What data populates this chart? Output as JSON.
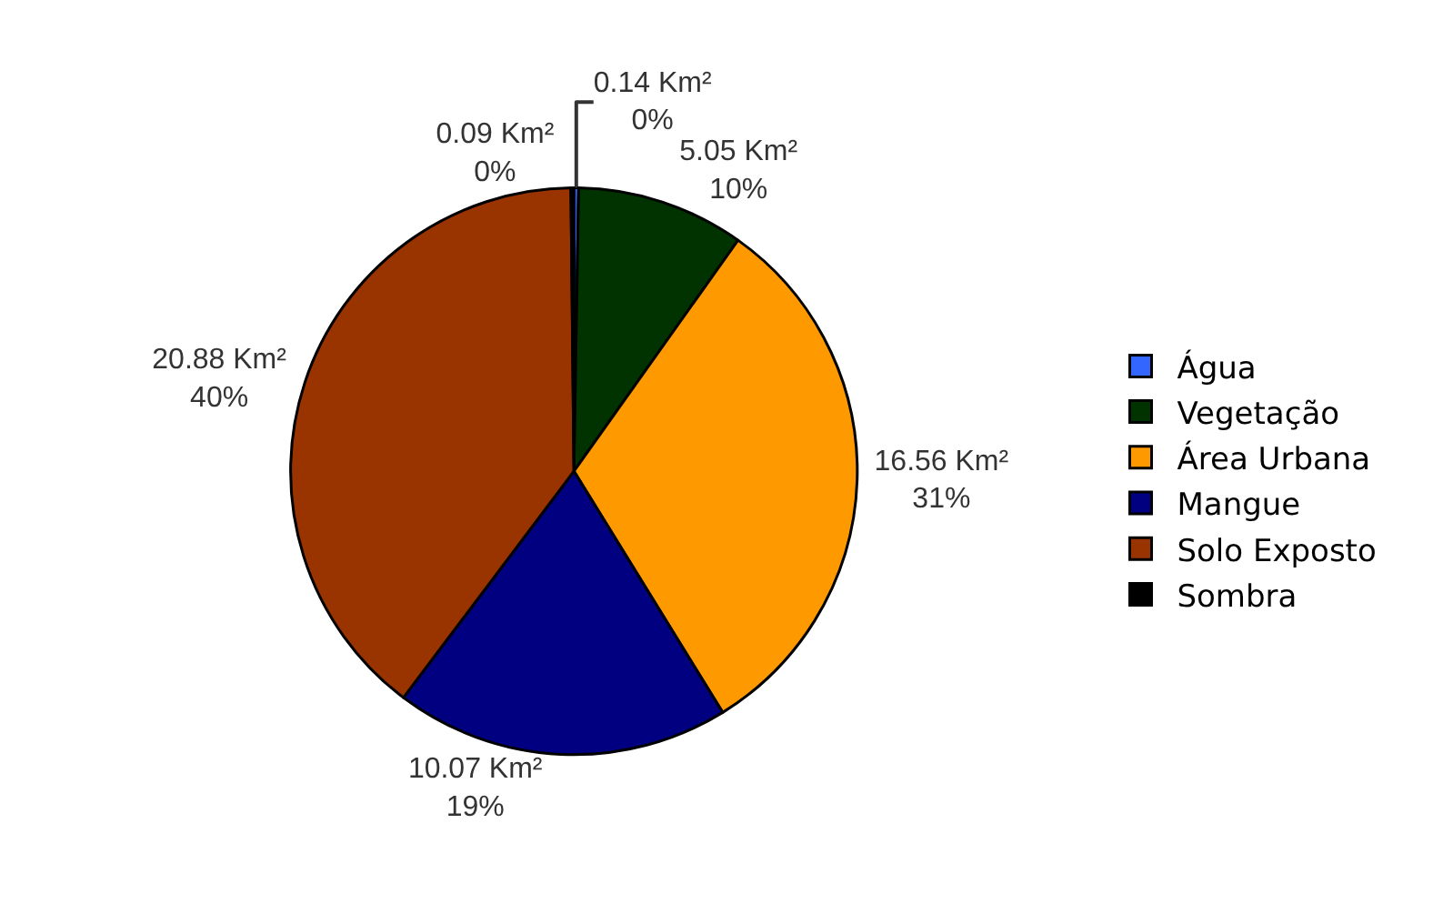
{
  "chart_data": {
    "type": "pie",
    "categories": [
      "Água",
      "Vegetação",
      "Área Urbana",
      "Mangue",
      "Solo Exposto",
      "Sombra"
    ],
    "values": [
      0.14,
      5.05,
      16.56,
      10.07,
      20.88,
      0.09
    ],
    "colors": [
      "#3366ff",
      "#003300",
      "#ff9900",
      "#000080",
      "#993300",
      "#000000"
    ],
    "value_labels": [
      "0.14 Km²\n0%",
      "5.05 Km²\n10%",
      "16.56 Km²\n31%",
      "10.07 Km²\n19%",
      "20.88 Km²\n40%",
      "0.09 Km²\n0%"
    ],
    "legend": "right"
  }
}
